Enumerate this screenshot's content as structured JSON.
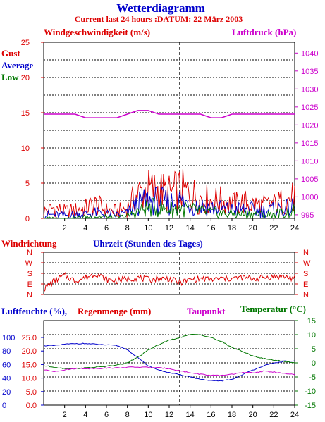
{
  "header": {
    "title": "Wetterdiagramm",
    "subtitle": "Current last 24 hours :DATUM: 22 März 2003"
  },
  "colors": {
    "red": "#dd0000",
    "blue": "#0000cc",
    "green": "#007700",
    "magenta": "#cc00cc",
    "grid": "#000000"
  },
  "chart_data": [
    {
      "type": "line",
      "id": "wind-pressure",
      "title": "",
      "left_axis_label": "Windgeschwindigkeit (m/s)",
      "right_axis_label": "Luftdruck (hPa)",
      "legend": [
        "Gust",
        "Average",
        "Low"
      ],
      "x_ticks": [
        2,
        4,
        6,
        8,
        10,
        12,
        14,
        16,
        18,
        20,
        22,
        24
      ],
      "xlim": [
        0,
        24
      ],
      "y_left_ticks": [
        0,
        5,
        10,
        15,
        20,
        25
      ],
      "ylim_left": [
        0,
        25
      ],
      "y_right_ticks": [
        995,
        1000,
        1005,
        1010,
        1015,
        1020,
        1025,
        1030,
        1035,
        1040
      ],
      "ylim_right": [
        994,
        1043
      ],
      "grid": true,
      "series": [
        {
          "name": "Gust",
          "color": "#dd0000",
          "x": [
            0,
            1,
            2,
            3,
            4,
            5,
            6,
            7,
            8,
            9,
            10,
            11,
            12,
            13,
            14,
            15,
            16,
            17,
            18,
            19,
            20,
            21,
            22,
            23,
            24
          ],
          "values": [
            1.0,
            1.5,
            1.0,
            1.2,
            1.5,
            2.0,
            1.2,
            1.0,
            1.5,
            3.5,
            4.0,
            4.0,
            3.5,
            4.0,
            3.5,
            3.0,
            2.5,
            2.5,
            2.0,
            2.2,
            2.0,
            1.8,
            2.0,
            2.5,
            3.0
          ]
        },
        {
          "name": "Average",
          "color": "#0000cc",
          "x": [
            0,
            1,
            2,
            3,
            4,
            5,
            6,
            7,
            8,
            9,
            10,
            11,
            12,
            13,
            14,
            15,
            16,
            17,
            18,
            19,
            20,
            21,
            22,
            23,
            24
          ],
          "values": [
            0.5,
            0.5,
            0.4,
            0.5,
            0.6,
            0.8,
            0.6,
            0.5,
            0.7,
            2.0,
            2.5,
            2.5,
            2.2,
            2.5,
            2.0,
            1.8,
            1.5,
            1.4,
            1.2,
            1.3,
            1.2,
            1.1,
            1.2,
            1.4,
            1.5
          ]
        },
        {
          "name": "Low",
          "color": "#007700",
          "x": [
            0,
            1,
            2,
            3,
            4,
            5,
            6,
            7,
            8,
            9,
            10,
            11,
            12,
            13,
            14,
            15,
            16,
            17,
            18,
            19,
            20,
            21,
            22,
            23,
            24
          ],
          "values": [
            0.0,
            0.0,
            0.0,
            0.0,
            0.2,
            0.3,
            0.2,
            0.1,
            0.3,
            1.0,
            1.5,
            1.5,
            1.2,
            1.5,
            1.2,
            1.0,
            0.8,
            0.7,
            0.6,
            0.6,
            0.6,
            0.5,
            0.6,
            0.8,
            1.0
          ]
        },
        {
          "name": "Luftdruck",
          "color": "#cc00cc",
          "axis": "right",
          "x": [
            0,
            1,
            2,
            3,
            4,
            5,
            6,
            7,
            8,
            9,
            10,
            11,
            12,
            13,
            14,
            15,
            16,
            17,
            18,
            19,
            20,
            21,
            22,
            23,
            24
          ],
          "values": [
            1023,
            1023,
            1023,
            1023,
            1022,
            1022,
            1022,
            1022,
            1023,
            1024,
            1024,
            1023,
            1023,
            1023,
            1023,
            1023,
            1022,
            1022,
            1023,
            1023,
            1023,
            1023,
            1023,
            1023,
            1023
          ]
        }
      ]
    },
    {
      "type": "line",
      "id": "wind-direction",
      "title": "",
      "left_axis_label": "Windrichtung",
      "x_axis_label": "Uhrzeit (Stunden des Tages)",
      "y_ticks": [
        "N",
        "W",
        "S",
        "E",
        "N"
      ],
      "series": [
        {
          "name": "Windrichtung",
          "color": "#dd0000",
          "x": [
            0,
            1,
            2,
            3,
            4,
            5,
            6,
            7,
            8,
            9,
            10,
            11,
            12,
            13,
            14,
            15,
            16,
            17,
            18,
            19,
            20,
            21,
            22,
            23,
            24
          ],
          "values": [
            0.5,
            1.3,
            1.8,
            1.3,
            1.6,
            2.0,
            1.4,
            1.3,
            1.5,
            1.6,
            1.4,
            1.5,
            1.5,
            1.1,
            1.4,
            1.5,
            1.4,
            1.5,
            1.5,
            1.6,
            1.5,
            1.6,
            1.7,
            1.7,
            1.5
          ]
        }
      ]
    },
    {
      "type": "line",
      "id": "humidity-temperature",
      "title": "",
      "left_axis_label_1": "Luftfeuchte (%),",
      "left_axis_label_2": "Regenmenge (mm)",
      "mid_axis_label": "Taupunkt",
      "right_axis_label": "Temperatur (°C)",
      "x_ticks": [
        2,
        4,
        6,
        8,
        10,
        12,
        14,
        16,
        18,
        20,
        22,
        24
      ],
      "xlim": [
        0,
        24
      ],
      "y_humidity_ticks": [
        0,
        20,
        40,
        60,
        80,
        100
      ],
      "y_rain_ticks": [
        "0.0",
        "5.0",
        "10.0",
        "15.0",
        "20.0",
        "25.0"
      ],
      "ylim_left": [
        0,
        125
      ],
      "y_temp_ticks": [
        -15,
        -10,
        -5,
        0,
        5,
        10,
        15
      ],
      "ylim_right": [
        -15,
        15
      ],
      "grid": true,
      "series": [
        {
          "name": "Luftfeuchte",
          "color": "#0000cc",
          "axis": "left",
          "x": [
            0,
            1,
            2,
            3,
            4,
            5,
            6,
            7,
            8,
            9,
            10,
            11,
            12,
            13,
            14,
            15,
            16,
            17,
            18,
            19,
            20,
            21,
            22,
            23,
            24
          ],
          "values": [
            88,
            88,
            90,
            91,
            91,
            90,
            89,
            88,
            82,
            70,
            58,
            52,
            48,
            45,
            42,
            38,
            36,
            36,
            38,
            45,
            52,
            58,
            62,
            65,
            65
          ]
        },
        {
          "name": "Temperatur",
          "color": "#007700",
          "axis": "right",
          "x": [
            0,
            1,
            2,
            3,
            4,
            5,
            6,
            7,
            8,
            9,
            10,
            11,
            12,
            13,
            14,
            15,
            16,
            17,
            18,
            19,
            20,
            21,
            22,
            23,
            24
          ],
          "values": [
            -1.0,
            -1.5,
            -2.0,
            -2.0,
            -1.8,
            -1.5,
            -1.2,
            -0.8,
            0.0,
            2.0,
            4.5,
            6.5,
            8.0,
            9.0,
            10.0,
            10.0,
            9.0,
            7.5,
            5.5,
            4.0,
            2.5,
            1.5,
            1.0,
            0.5,
            0.0
          ]
        },
        {
          "name": "Taupunkt",
          "color": "#cc00cc",
          "axis": "right",
          "x": [
            0,
            1,
            2,
            3,
            4,
            5,
            6,
            7,
            8,
            9,
            10,
            11,
            12,
            13,
            14,
            15,
            16,
            17,
            18,
            19,
            20,
            21,
            22,
            23,
            24
          ],
          "values": [
            -2.5,
            -3.0,
            -2.5,
            -2.0,
            -2.0,
            -2.0,
            -1.8,
            -1.8,
            -1.6,
            -1.5,
            -1.6,
            -1.8,
            -2.0,
            -2.8,
            -3.5,
            -4.0,
            -4.5,
            -4.5,
            -4.0,
            -3.5,
            -3.5,
            -3.0,
            -3.2,
            -3.8,
            -4.2
          ]
        }
      ]
    }
  ]
}
